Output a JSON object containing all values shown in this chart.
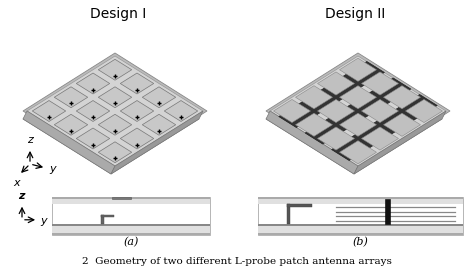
{
  "title_left": "Design I",
  "title_right": "Design II",
  "bg_color": "#ffffff",
  "label_a": "(a)",
  "label_b": "(b)",
  "axis_label_z": "z",
  "axis_label_y": "y",
  "axis_label_x": "x",
  "caption": "2  Geometry of two different L-probe patch antenna arrays"
}
